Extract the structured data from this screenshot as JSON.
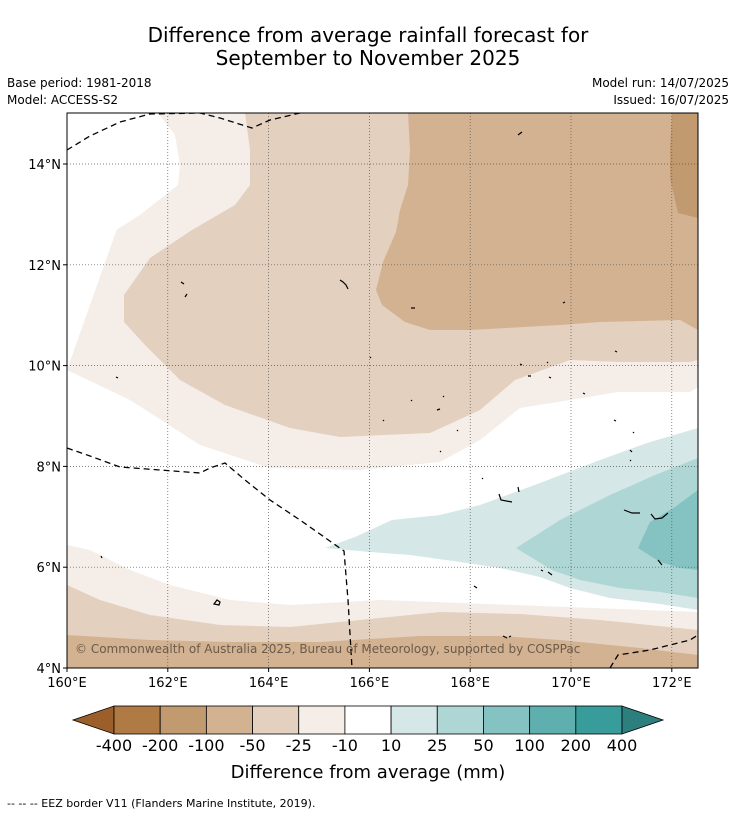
{
  "title": {
    "line1": "Difference from average rainfall forecast for",
    "line2": "September to November 2025"
  },
  "meta": {
    "base_period": "Base period: 1981-2018",
    "model": "Model: ACCESS-S2",
    "model_run": "Model run: 14/07/2025",
    "issued": "Issued: 16/07/2025"
  },
  "map": {
    "lon_labels": [
      "160°E",
      "162°E",
      "164°E",
      "166°E",
      "168°E",
      "170°E",
      "172°E"
    ],
    "lat_labels": [
      "4°N",
      "6°N",
      "8°N",
      "10°N",
      "12°N",
      "14°N"
    ],
    "copyright": "© Commonwealth of Australia 2025, Bureau of Meteorology, supported by COSPPac"
  },
  "colorbar": {
    "labels": [
      "-400",
      "-200",
      "-100",
      "-50",
      "-25",
      "-10",
      "10",
      "25",
      "50",
      "100",
      "200",
      "400"
    ],
    "colors": [
      "#9c5f2a",
      "#b07a45",
      "#c19a70",
      "#d3b292",
      "#e3d0bf",
      "#f5ede7",
      "#ffffff",
      "#d5e8e7",
      "#aed6d5",
      "#85c2c2",
      "#5eafae",
      "#389d9a",
      "#2d7f7d"
    ],
    "title": "Difference from average (mm)"
  },
  "footnote": "--  --  -- EEZ border V11 (Flanders Marine Institute, 2019)."
}
